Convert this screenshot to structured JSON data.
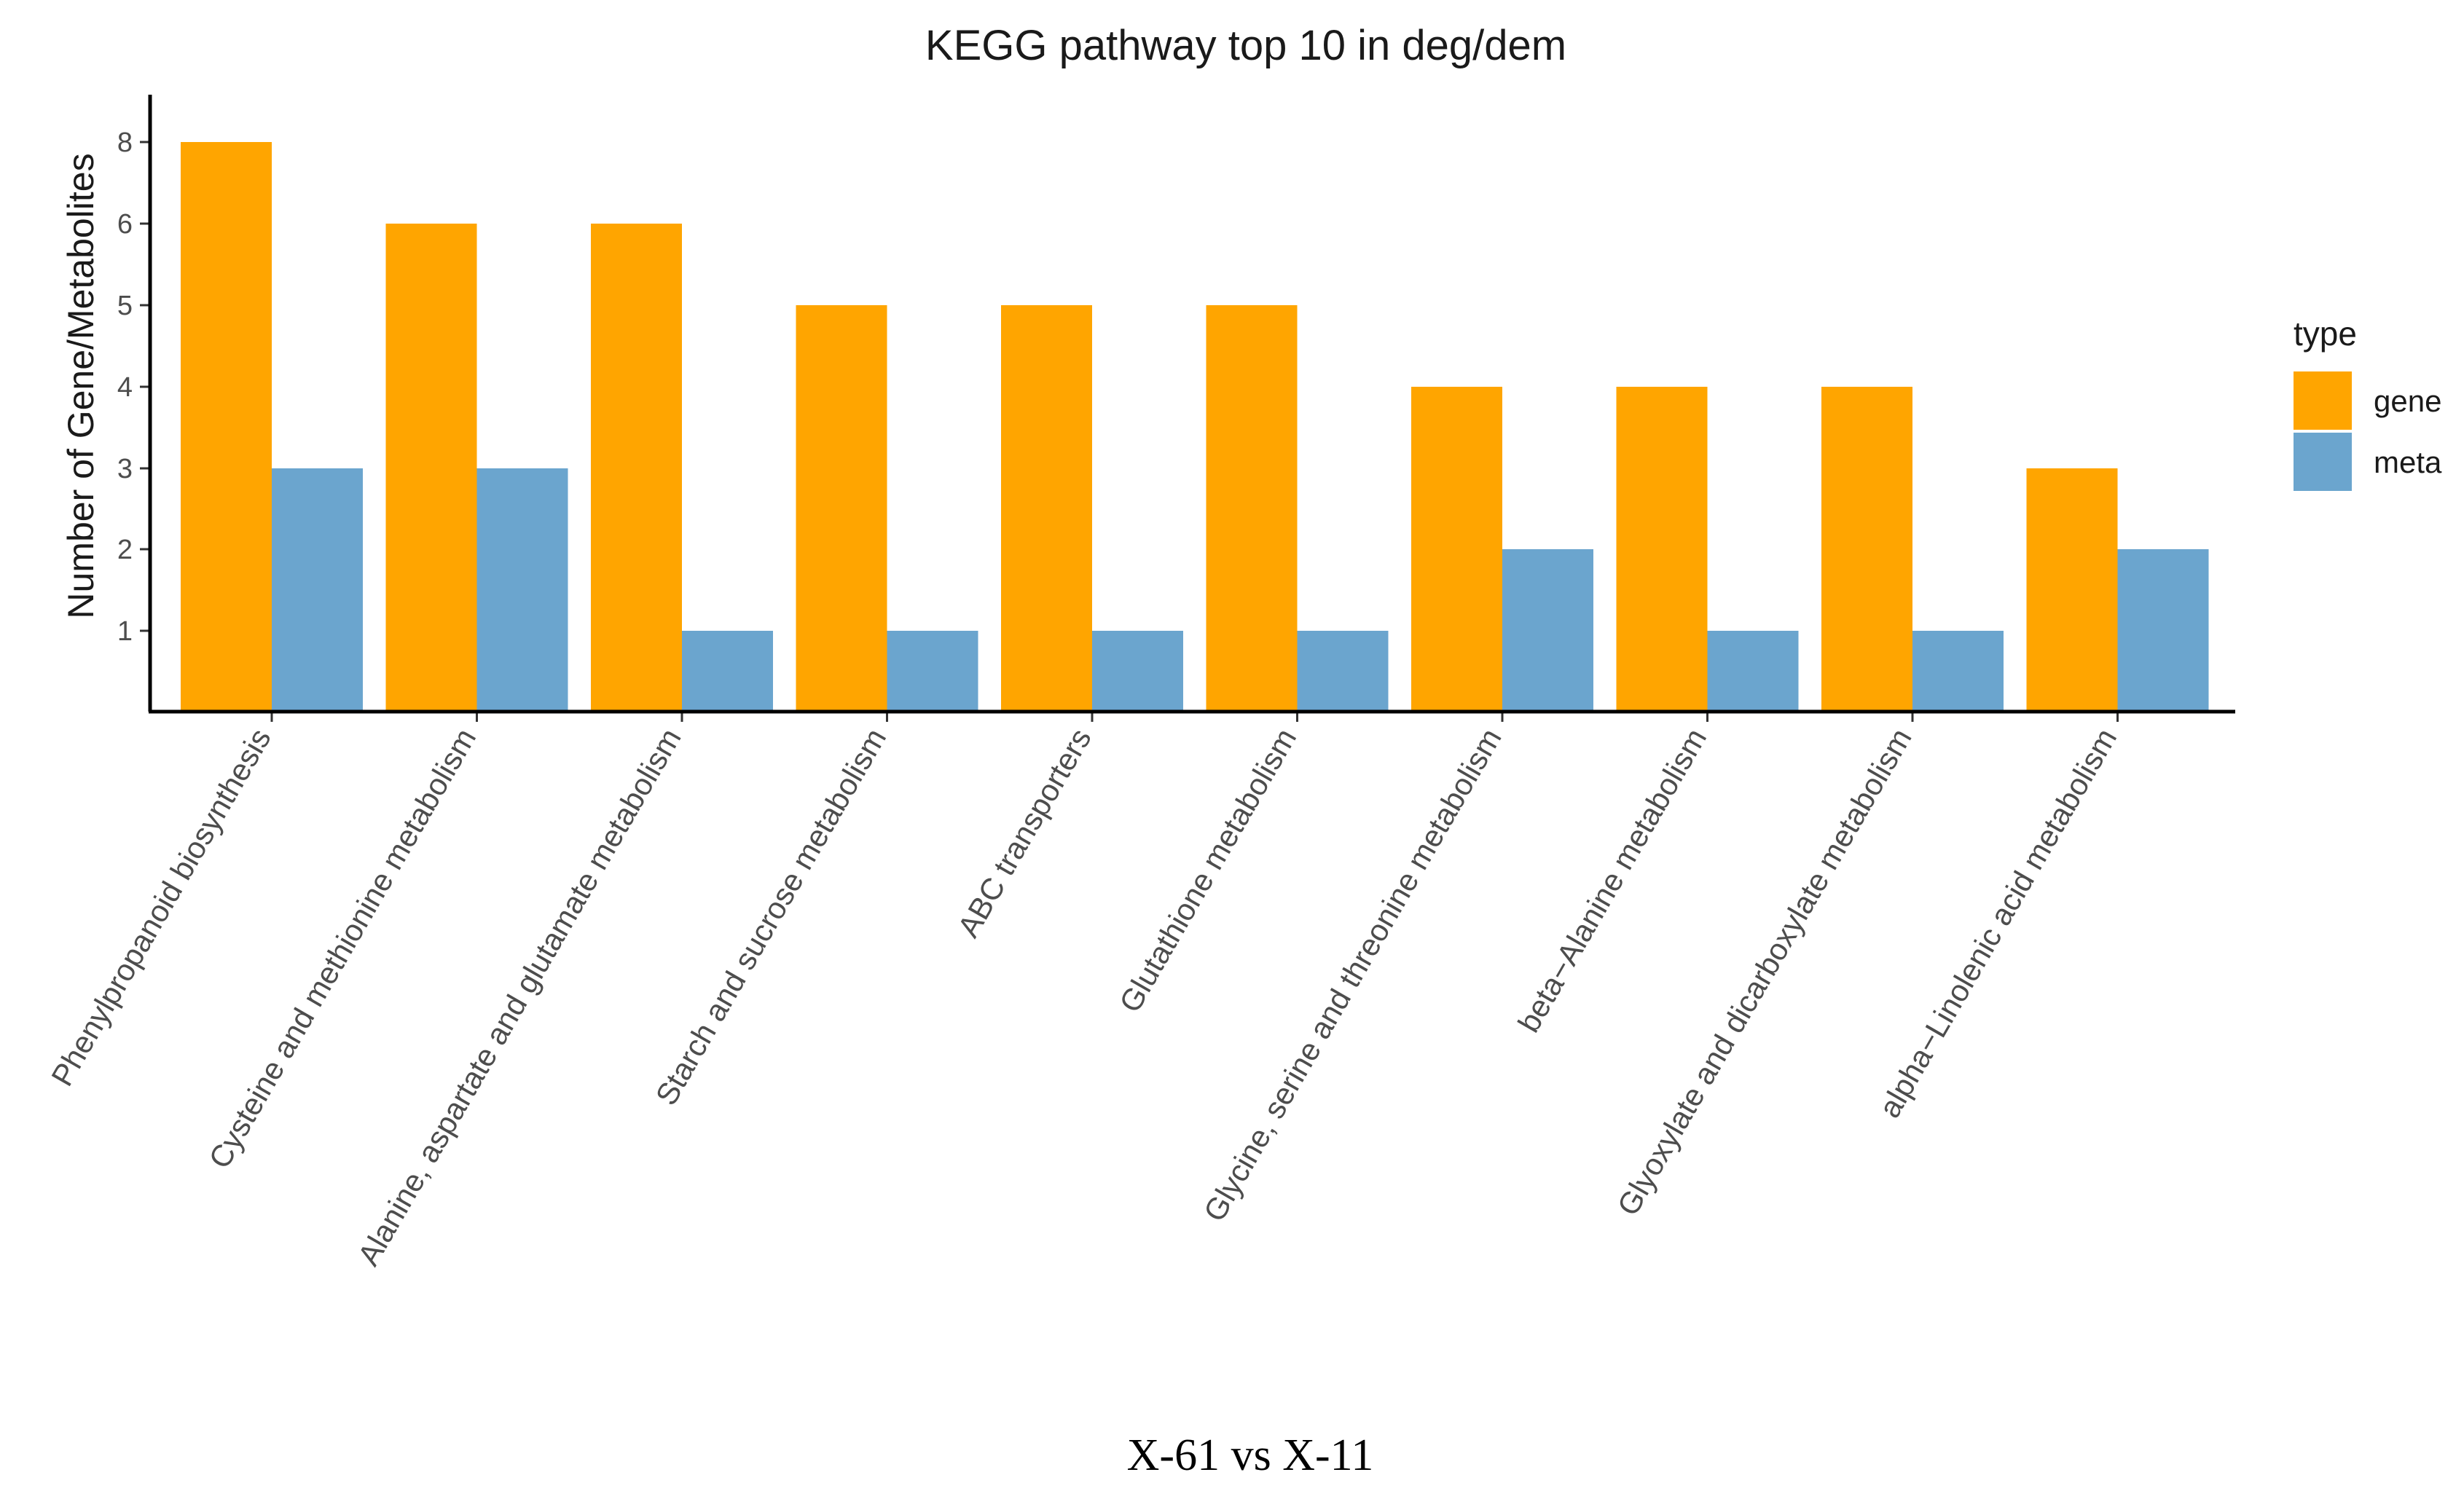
{
  "chart_data": {
    "type": "bar",
    "title": "KEGG pathway top 10 in deg/dem",
    "xlabel": "",
    "ylabel": "Number of Gene/Metabolites",
    "y_ticks": [
      "1",
      "2",
      "3",
      "4",
      "5",
      "6",
      "8"
    ],
    "categories": [
      "Phenylpropanoid biosynthesis",
      "Cysteine and methionine metabolism",
      "Alanine, aspartate and glutamate metabolism",
      "Starch and sucrose metabolism",
      "ABC transporters",
      "Glutathione metabolism",
      "Glycine, serine and threonine metabolism",
      "beta−Alanine metabolism",
      "Glyoxylate and dicarboxylate metabolism",
      "alpha−Linolenic acid metabolism"
    ],
    "series": [
      {
        "name": "gene",
        "color": "#FFA500",
        "values": [
          "8",
          "6",
          "6",
          "5",
          "5",
          "5",
          "4",
          "4",
          "4",
          "3"
        ]
      },
      {
        "name": "meta",
        "color": "#6BA5CE",
        "values": [
          "3",
          "3",
          "1",
          "1",
          "1",
          "1",
          "2",
          "1",
          "1",
          "2"
        ]
      }
    ],
    "legend": {
      "title": "type",
      "position": "right"
    },
    "grid": false
  },
  "caption": "X-61 vs X-11"
}
